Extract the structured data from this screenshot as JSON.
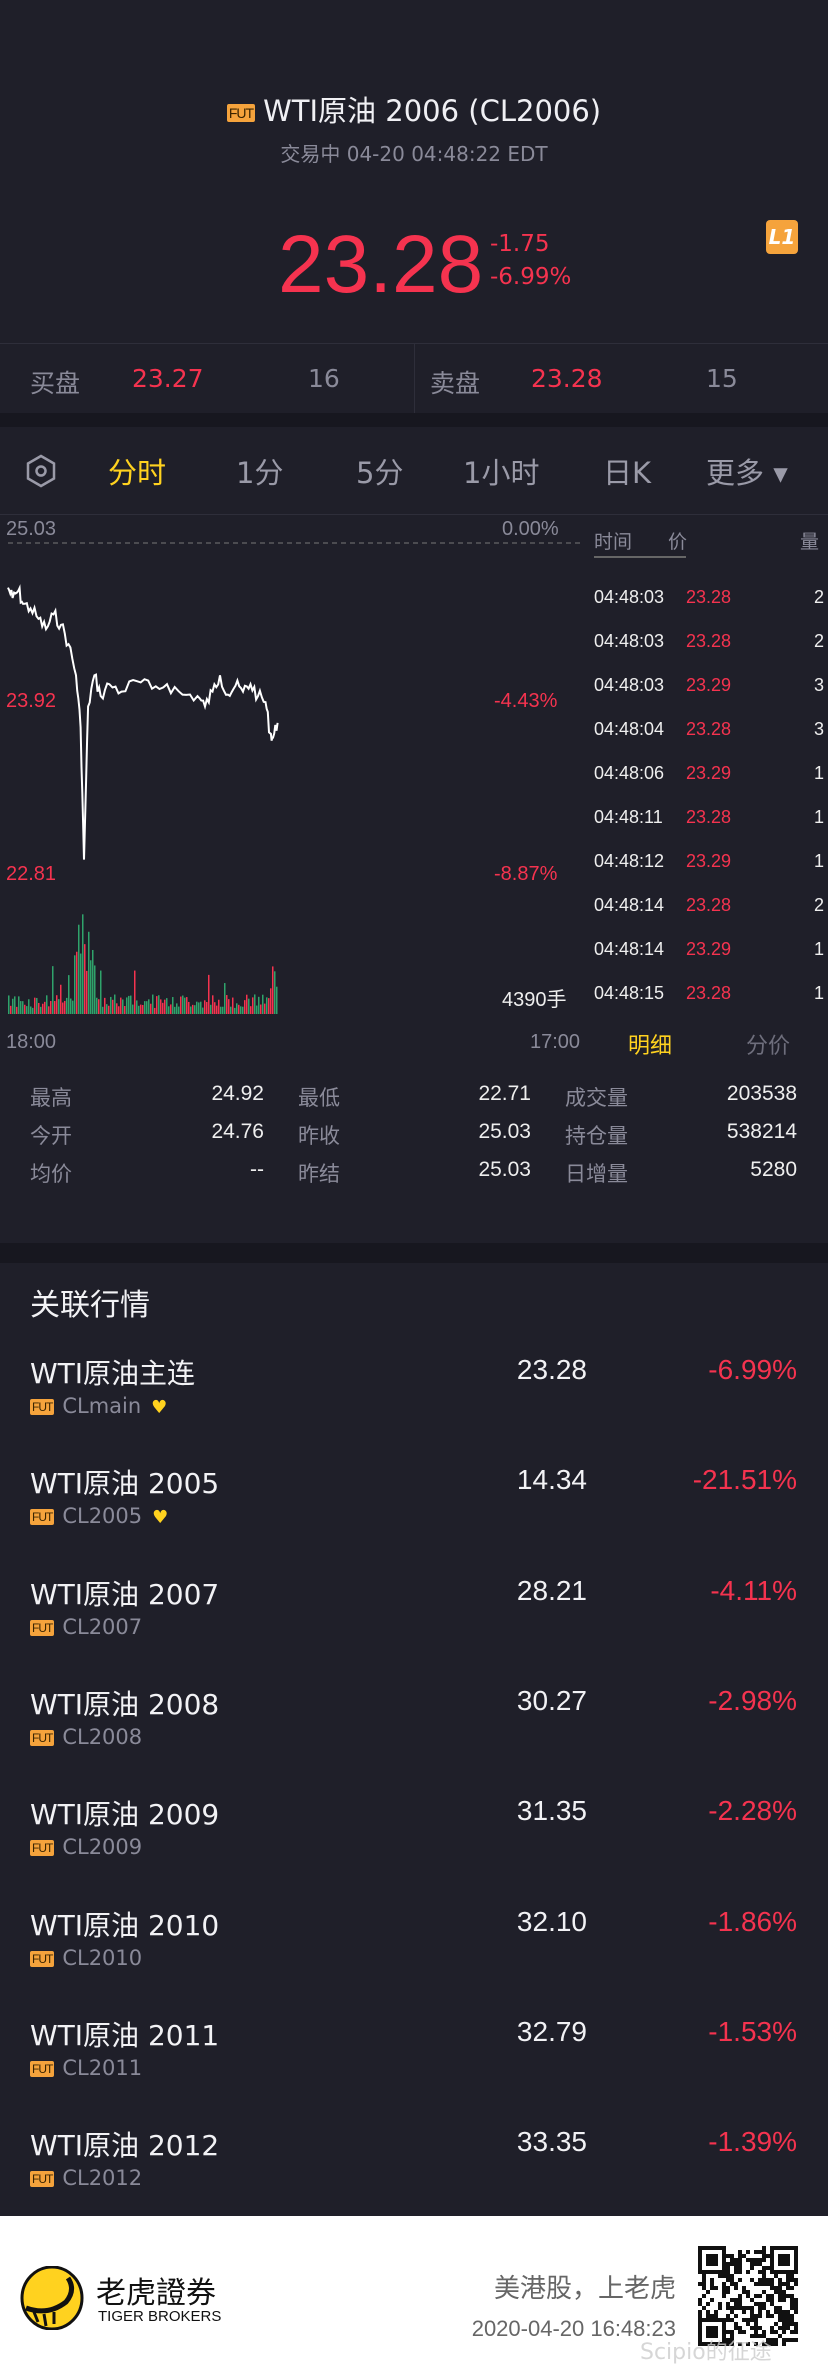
{
  "header": {
    "badge": "FUT",
    "title": "WTI原油 2006 (CL2006)",
    "status": "交易中 04-20 04:48:22 EDT",
    "level_icon": "L1"
  },
  "quote": {
    "price": "23.28",
    "change": "-1.75",
    "change_pct": "-6.99%"
  },
  "orderbook": {
    "bid_label": "买盘",
    "bid_price": "23.27",
    "bid_size": "16",
    "ask_label": "卖盘",
    "ask_price": "23.28",
    "ask_size": "15"
  },
  "tabs": [
    {
      "label": "分时",
      "active": true
    },
    {
      "label": "1分"
    },
    {
      "label": "5分"
    },
    {
      "label": "1小时"
    },
    {
      "label": "日K"
    },
    {
      "label": "更多 ▾"
    }
  ],
  "chart_data": {
    "type": "line",
    "y_left_ticks": [
      "25.03",
      "23.92",
      "22.81"
    ],
    "y_right_ticks": [
      "0.00%",
      "-4.43%",
      "-8.87%"
    ],
    "x_ticks": [
      "18:00",
      "17:00"
    ],
    "ylim": [
      22.81,
      25.03
    ],
    "reference_price": 25.03,
    "volume_label": "4390手",
    "colors": {
      "line": "#ffffff",
      "up": "#f5334f",
      "down": "#2fa36b"
    },
    "points": [
      [
        "18:00",
        24.73
      ],
      [
        "18:11",
        24.66
      ],
      [
        "18:25",
        24.71
      ],
      [
        "18:36",
        24.62
      ],
      [
        "18:54",
        24.59
      ],
      [
        "19:13",
        24.52
      ],
      [
        "19:31",
        24.45
      ],
      [
        "19:49",
        24.55
      ],
      [
        "20:07",
        24.48
      ],
      [
        "20:25",
        24.35
      ],
      [
        "20:43",
        24.14
      ],
      [
        "20:54",
        23.79
      ],
      [
        "21:02",
        22.9
      ],
      [
        "21:12",
        23.93
      ],
      [
        "21:27",
        24.14
      ],
      [
        "21:42",
        24.0
      ],
      [
        "22:03",
        24.08
      ],
      [
        "22:32",
        24.03
      ],
      [
        "23:09",
        24.1
      ],
      [
        "23:45",
        24.05
      ],
      [
        "00:21",
        24.08
      ],
      [
        "00:58",
        24.01
      ],
      [
        "01:34",
        24.0
      ],
      [
        "01:52",
        23.93
      ],
      [
        "02:10",
        24.03
      ],
      [
        "02:28",
        24.14
      ],
      [
        "02:47",
        24.01
      ],
      [
        "03:05",
        24.07
      ],
      [
        "03:23",
        24.03
      ],
      [
        "03:41",
        24.08
      ],
      [
        "03:59",
        24.0
      ],
      [
        "04:17",
        23.96
      ],
      [
        "04:28",
        23.75
      ],
      [
        "04:35",
        23.72
      ],
      [
        "04:46",
        23.82
      ]
    ]
  },
  "trades": {
    "headers": [
      "时间",
      "价",
      "量"
    ],
    "rows": [
      [
        "04:48:03",
        "23.28",
        "2"
      ],
      [
        "04:48:03",
        "23.28",
        "2"
      ],
      [
        "04:48:03",
        "23.29",
        "3"
      ],
      [
        "04:48:04",
        "23.28",
        "3"
      ],
      [
        "04:48:06",
        "23.29",
        "1"
      ],
      [
        "04:48:11",
        "23.28",
        "1"
      ],
      [
        "04:48:12",
        "23.29",
        "1"
      ],
      [
        "04:48:14",
        "23.28",
        "2"
      ],
      [
        "04:48:14",
        "23.29",
        "1"
      ],
      [
        "04:48:15",
        "23.28",
        "1"
      ]
    ],
    "tabs": [
      "明细",
      "分价"
    ]
  },
  "stats": [
    [
      "最高",
      "24.92"
    ],
    [
      "最低",
      "22.71"
    ],
    [
      "成交量",
      "203538"
    ],
    [
      "今开",
      "24.76"
    ],
    [
      "昨收",
      "25.03"
    ],
    [
      "持仓量",
      "538214"
    ],
    [
      "均价",
      "--"
    ],
    [
      "昨结",
      "25.03"
    ],
    [
      "日增量",
      "5280"
    ]
  ],
  "related": {
    "title": "关联行情",
    "items": [
      {
        "name": "WTI原油主连",
        "code": "CLmain",
        "price": "23.28",
        "pct": "-6.99%",
        "fav": true
      },
      {
        "name": "WTI原油 2005",
        "code": "CL2005",
        "price": "14.34",
        "pct": "-21.51%",
        "fav": true
      },
      {
        "name": "WTI原油 2007",
        "code": "CL2007",
        "price": "28.21",
        "pct": "-4.11%"
      },
      {
        "name": "WTI原油 2008",
        "code": "CL2008",
        "price": "30.27",
        "pct": "-2.98%"
      },
      {
        "name": "WTI原油 2009",
        "code": "CL2009",
        "price": "31.35",
        "pct": "-2.28%"
      },
      {
        "name": "WTI原油 2010",
        "code": "CL2010",
        "price": "32.10",
        "pct": "-1.86%"
      },
      {
        "name": "WTI原油 2011",
        "code": "CL2011",
        "price": "32.79",
        "pct": "-1.53%"
      },
      {
        "name": "WTI原油 2012",
        "code": "CL2012",
        "price": "33.35",
        "pct": "-1.39%"
      }
    ]
  },
  "footer": {
    "brand_cn": "老虎證券",
    "brand_en": "TIGER BROKERS",
    "slogan": "美港股，上老虎",
    "timestamp": "2020-04-20 16:48:23",
    "watermark": "Scipio的征途",
    "brand_color": "#ffd21f"
  }
}
